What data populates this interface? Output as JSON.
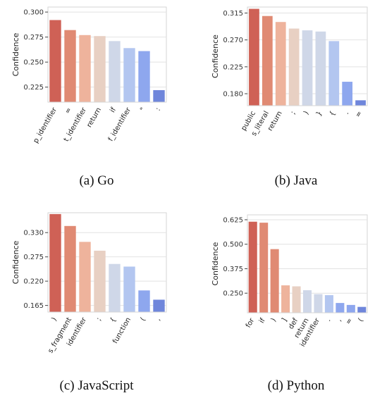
{
  "colors": {
    "palette": [
      "#cf6156",
      "#e08a73",
      "#eeb39c",
      "#e8d0c3",
      "#cfd7e8",
      "#b3c6f0",
      "#8ea7ee",
      "#6f86db"
    ],
    "axis_frame": "#d6d6d6",
    "grid": "#e2e2e2"
  },
  "chart_data": [
    {
      "type": "bar",
      "caption": "(a)  Go",
      "ylabel": "Confidence",
      "categories": [
        "p_identifier",
        "=",
        "t_identifier",
        "return",
        "if",
        "f_identifier",
        "\"",
        ":"
      ],
      "values": [
        0.292,
        0.282,
        0.277,
        0.276,
        0.271,
        0.264,
        0.261,
        0.222
      ],
      "ylim": [
        0.21,
        0.305
      ],
      "yticks": [
        0.225,
        0.25,
        0.275,
        0.3
      ],
      "yticklabels": [
        "0.225",
        "0.250",
        "0.275",
        "0.300"
      ],
      "grid": true
    },
    {
      "type": "bar",
      "caption": "(b)  Java",
      "ylabel": "Confidence",
      "categories": [
        "public",
        "s_literal",
        "return",
        ";",
        ")",
        "}",
        "{",
        ".",
        "="
      ],
      "values": [
        0.322,
        0.31,
        0.3,
        0.289,
        0.286,
        0.284,
        0.268,
        0.2,
        0.169
      ],
      "ylim": [
        0.16,
        0.325
      ],
      "yticks": [
        0.18,
        0.225,
        0.27,
        0.315
      ],
      "yticklabels": [
        "0.180",
        "0.225",
        "0.270",
        "0.315"
      ],
      "grid": true
    },
    {
      "type": "bar",
      "caption": "(c)  JavaScript",
      "ylabel": "Confidence",
      "categories": [
        ")",
        "s_fragment",
        "identifier",
        ";",
        "{",
        "function",
        "(",
        ","
      ],
      "values": [
        0.372,
        0.345,
        0.309,
        0.289,
        0.259,
        0.253,
        0.199,
        0.178
      ],
      "ylim": [
        0.15,
        0.375
      ],
      "yticks": [
        0.165,
        0.22,
        0.275,
        0.33
      ],
      "yticklabels": [
        "0.165",
        "0.220",
        "0.275",
        "0.330"
      ],
      "grid": true
    },
    {
      "type": "bar",
      "caption": "(d)  Python",
      "ylabel": "Confidence",
      "categories": [
        "for",
        "if",
        ")",
        "]",
        "def",
        "return",
        "identifier",
        ".",
        ",",
        "=",
        "("
      ],
      "values": [
        0.615,
        0.61,
        0.475,
        0.29,
        0.285,
        0.265,
        0.245,
        0.24,
        0.2,
        0.19,
        0.18
      ],
      "ylim": [
        0.15,
        0.65
      ],
      "yticks": [
        0.25,
        0.375,
        0.5,
        0.625
      ],
      "yticklabels": [
        "0.250",
        "0.375",
        "0.500",
        "0.625"
      ],
      "grid": true
    }
  ]
}
